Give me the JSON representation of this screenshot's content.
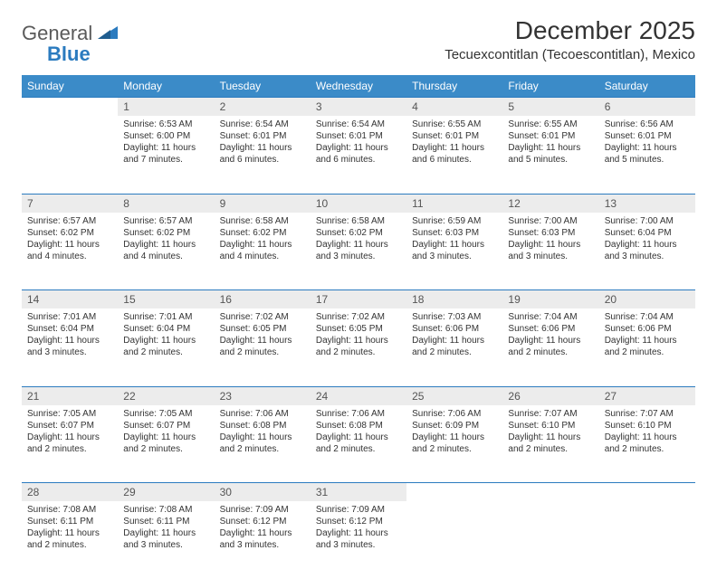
{
  "logo": {
    "text1": "General",
    "text2": "Blue"
  },
  "title": "December 2025",
  "location": "Tecuexcontitlan (Tecoescontitlan), Mexico",
  "colors": {
    "header_bg": "#3b8bc8",
    "header_text": "#ffffff",
    "daynum_bg": "#ececec",
    "border": "#2b7bbf",
    "page_bg": "#ffffff",
    "body_text": "#333333",
    "logo_gray": "#5a5a5a",
    "logo_blue": "#2b7bbf"
  },
  "weekdays": [
    "Sunday",
    "Monday",
    "Tuesday",
    "Wednesday",
    "Thursday",
    "Friday",
    "Saturday"
  ],
  "weeks": [
    [
      null,
      {
        "n": "1",
        "sr": "Sunrise: 6:53 AM",
        "ss": "Sunset: 6:00 PM",
        "dl1": "Daylight: 11 hours",
        "dl2": "and 7 minutes."
      },
      {
        "n": "2",
        "sr": "Sunrise: 6:54 AM",
        "ss": "Sunset: 6:01 PM",
        "dl1": "Daylight: 11 hours",
        "dl2": "and 6 minutes."
      },
      {
        "n": "3",
        "sr": "Sunrise: 6:54 AM",
        "ss": "Sunset: 6:01 PM",
        "dl1": "Daylight: 11 hours",
        "dl2": "and 6 minutes."
      },
      {
        "n": "4",
        "sr": "Sunrise: 6:55 AM",
        "ss": "Sunset: 6:01 PM",
        "dl1": "Daylight: 11 hours",
        "dl2": "and 6 minutes."
      },
      {
        "n": "5",
        "sr": "Sunrise: 6:55 AM",
        "ss": "Sunset: 6:01 PM",
        "dl1": "Daylight: 11 hours",
        "dl2": "and 5 minutes."
      },
      {
        "n": "6",
        "sr": "Sunrise: 6:56 AM",
        "ss": "Sunset: 6:01 PM",
        "dl1": "Daylight: 11 hours",
        "dl2": "and 5 minutes."
      }
    ],
    [
      {
        "n": "7",
        "sr": "Sunrise: 6:57 AM",
        "ss": "Sunset: 6:02 PM",
        "dl1": "Daylight: 11 hours",
        "dl2": "and 4 minutes."
      },
      {
        "n": "8",
        "sr": "Sunrise: 6:57 AM",
        "ss": "Sunset: 6:02 PM",
        "dl1": "Daylight: 11 hours",
        "dl2": "and 4 minutes."
      },
      {
        "n": "9",
        "sr": "Sunrise: 6:58 AM",
        "ss": "Sunset: 6:02 PM",
        "dl1": "Daylight: 11 hours",
        "dl2": "and 4 minutes."
      },
      {
        "n": "10",
        "sr": "Sunrise: 6:58 AM",
        "ss": "Sunset: 6:02 PM",
        "dl1": "Daylight: 11 hours",
        "dl2": "and 3 minutes."
      },
      {
        "n": "11",
        "sr": "Sunrise: 6:59 AM",
        "ss": "Sunset: 6:03 PM",
        "dl1": "Daylight: 11 hours",
        "dl2": "and 3 minutes."
      },
      {
        "n": "12",
        "sr": "Sunrise: 7:00 AM",
        "ss": "Sunset: 6:03 PM",
        "dl1": "Daylight: 11 hours",
        "dl2": "and 3 minutes."
      },
      {
        "n": "13",
        "sr": "Sunrise: 7:00 AM",
        "ss": "Sunset: 6:04 PM",
        "dl1": "Daylight: 11 hours",
        "dl2": "and 3 minutes."
      }
    ],
    [
      {
        "n": "14",
        "sr": "Sunrise: 7:01 AM",
        "ss": "Sunset: 6:04 PM",
        "dl1": "Daylight: 11 hours",
        "dl2": "and 3 minutes."
      },
      {
        "n": "15",
        "sr": "Sunrise: 7:01 AM",
        "ss": "Sunset: 6:04 PM",
        "dl1": "Daylight: 11 hours",
        "dl2": "and 2 minutes."
      },
      {
        "n": "16",
        "sr": "Sunrise: 7:02 AM",
        "ss": "Sunset: 6:05 PM",
        "dl1": "Daylight: 11 hours",
        "dl2": "and 2 minutes."
      },
      {
        "n": "17",
        "sr": "Sunrise: 7:02 AM",
        "ss": "Sunset: 6:05 PM",
        "dl1": "Daylight: 11 hours",
        "dl2": "and 2 minutes."
      },
      {
        "n": "18",
        "sr": "Sunrise: 7:03 AM",
        "ss": "Sunset: 6:06 PM",
        "dl1": "Daylight: 11 hours",
        "dl2": "and 2 minutes."
      },
      {
        "n": "19",
        "sr": "Sunrise: 7:04 AM",
        "ss": "Sunset: 6:06 PM",
        "dl1": "Daylight: 11 hours",
        "dl2": "and 2 minutes."
      },
      {
        "n": "20",
        "sr": "Sunrise: 7:04 AM",
        "ss": "Sunset: 6:06 PM",
        "dl1": "Daylight: 11 hours",
        "dl2": "and 2 minutes."
      }
    ],
    [
      {
        "n": "21",
        "sr": "Sunrise: 7:05 AM",
        "ss": "Sunset: 6:07 PM",
        "dl1": "Daylight: 11 hours",
        "dl2": "and 2 minutes."
      },
      {
        "n": "22",
        "sr": "Sunrise: 7:05 AM",
        "ss": "Sunset: 6:07 PM",
        "dl1": "Daylight: 11 hours",
        "dl2": "and 2 minutes."
      },
      {
        "n": "23",
        "sr": "Sunrise: 7:06 AM",
        "ss": "Sunset: 6:08 PM",
        "dl1": "Daylight: 11 hours",
        "dl2": "and 2 minutes."
      },
      {
        "n": "24",
        "sr": "Sunrise: 7:06 AM",
        "ss": "Sunset: 6:08 PM",
        "dl1": "Daylight: 11 hours",
        "dl2": "and 2 minutes."
      },
      {
        "n": "25",
        "sr": "Sunrise: 7:06 AM",
        "ss": "Sunset: 6:09 PM",
        "dl1": "Daylight: 11 hours",
        "dl2": "and 2 minutes."
      },
      {
        "n": "26",
        "sr": "Sunrise: 7:07 AM",
        "ss": "Sunset: 6:10 PM",
        "dl1": "Daylight: 11 hours",
        "dl2": "and 2 minutes."
      },
      {
        "n": "27",
        "sr": "Sunrise: 7:07 AM",
        "ss": "Sunset: 6:10 PM",
        "dl1": "Daylight: 11 hours",
        "dl2": "and 2 minutes."
      }
    ],
    [
      {
        "n": "28",
        "sr": "Sunrise: 7:08 AM",
        "ss": "Sunset: 6:11 PM",
        "dl1": "Daylight: 11 hours",
        "dl2": "and 2 minutes."
      },
      {
        "n": "29",
        "sr": "Sunrise: 7:08 AM",
        "ss": "Sunset: 6:11 PM",
        "dl1": "Daylight: 11 hours",
        "dl2": "and 3 minutes."
      },
      {
        "n": "30",
        "sr": "Sunrise: 7:09 AM",
        "ss": "Sunset: 6:12 PM",
        "dl1": "Daylight: 11 hours",
        "dl2": "and 3 minutes."
      },
      {
        "n": "31",
        "sr": "Sunrise: 7:09 AM",
        "ss": "Sunset: 6:12 PM",
        "dl1": "Daylight: 11 hours",
        "dl2": "and 3 minutes."
      },
      null,
      null,
      null
    ]
  ]
}
